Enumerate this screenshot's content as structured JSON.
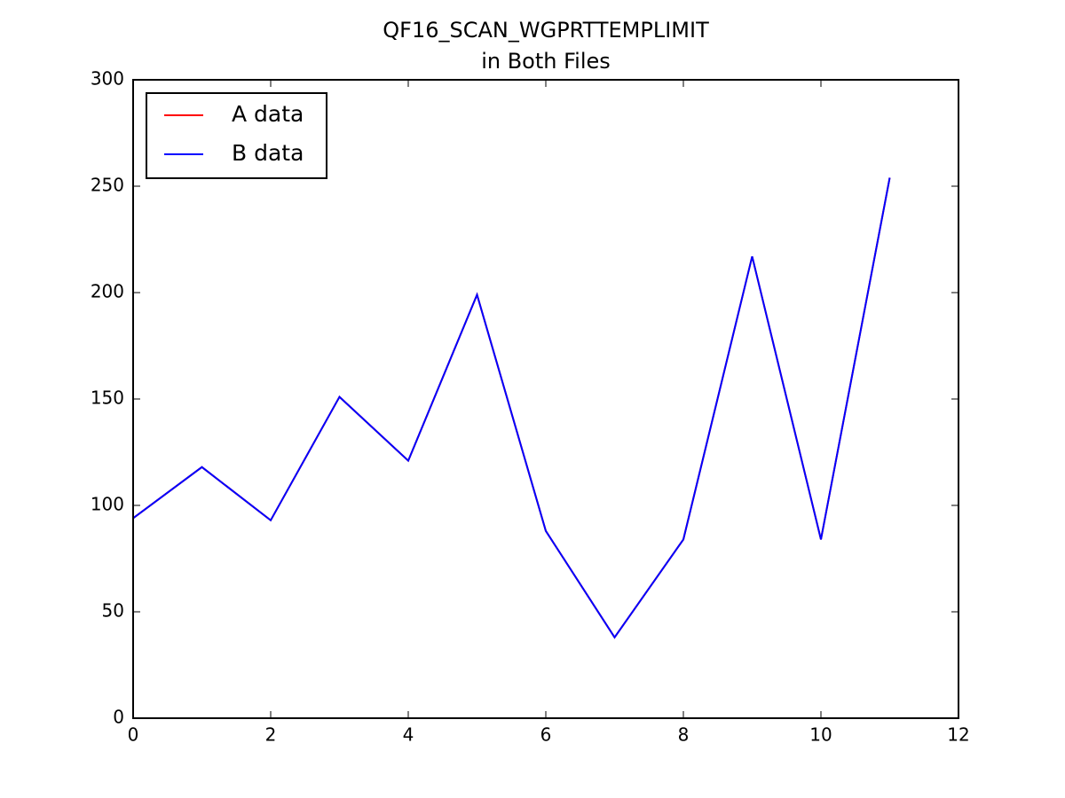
{
  "chart_data": {
    "type": "line",
    "title": "QF16_SCAN_WGPRTTEMPLIMIT",
    "subtitle": "in Both Files",
    "x": [
      0,
      1,
      2,
      3,
      4,
      5,
      6,
      7,
      8,
      9,
      10,
      11
    ],
    "series": [
      {
        "name": "A data",
        "color": "#ff0000",
        "values": [
          94,
          118,
          93,
          151,
          121,
          199,
          88,
          38,
          84,
          217,
          84,
          254
        ]
      },
      {
        "name": "B data",
        "color": "#0000ff",
        "values": [
          94,
          118,
          93,
          151,
          121,
          199,
          88,
          38,
          84,
          217,
          84,
          254
        ]
      }
    ],
    "xlim": [
      0,
      12
    ],
    "xticks": [
      0,
      2,
      4,
      6,
      8,
      10,
      12
    ],
    "ylim": [
      0,
      300
    ],
    "yticks": [
      0,
      50,
      100,
      150,
      200,
      250,
      300
    ],
    "grid": false,
    "legend": "upper-left"
  }
}
